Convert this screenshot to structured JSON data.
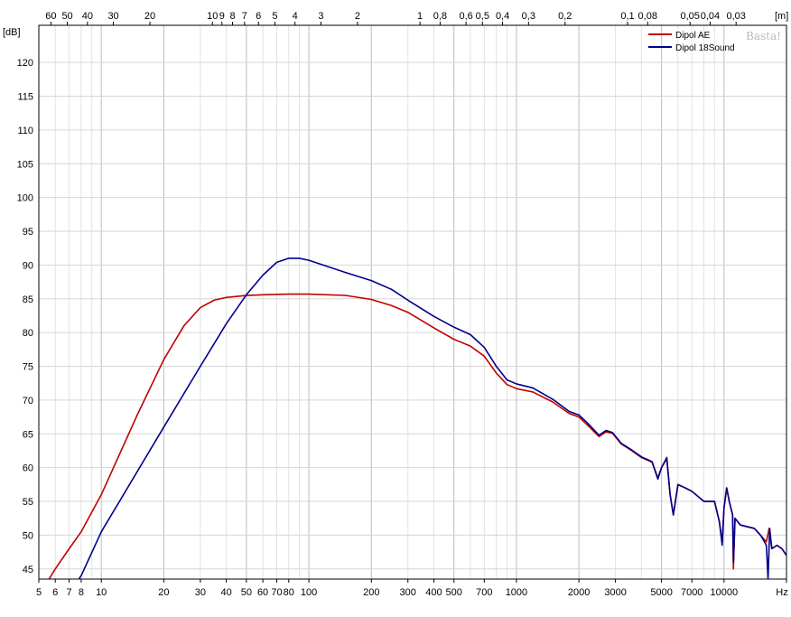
{
  "chart_data": {
    "type": "line",
    "title": "",
    "xlabel_unit": "Hz",
    "ylabel_unit": "[dB]",
    "top_axis_unit": "[m]",
    "x_scale": "log",
    "xlim": [
      5,
      20000
    ],
    "ylim": [
      43.5,
      125.5
    ],
    "grid": true,
    "legend_position": "top-right",
    "watermark": "Basta!",
    "x_ticks": [
      {
        "v": 5,
        "label": "5"
      },
      {
        "v": 6,
        "label": "6"
      },
      {
        "v": 7,
        "label": "7"
      },
      {
        "v": 8,
        "label": "8"
      },
      {
        "v": 10,
        "label": "10"
      },
      {
        "v": 20,
        "label": "20"
      },
      {
        "v": 30,
        "label": "30"
      },
      {
        "v": 40,
        "label": "40"
      },
      {
        "v": 50,
        "label": "50"
      },
      {
        "v": 60,
        "label": "60"
      },
      {
        "v": 70,
        "label": "70"
      },
      {
        "v": 80,
        "label": "80"
      },
      {
        "v": 100,
        "label": "100"
      },
      {
        "v": 200,
        "label": "200"
      },
      {
        "v": 300,
        "label": "300"
      },
      {
        "v": 400,
        "label": "400"
      },
      {
        "v": 500,
        "label": "500"
      },
      {
        "v": 700,
        "label": "700"
      },
      {
        "v": 1000,
        "label": "1000"
      },
      {
        "v": 2000,
        "label": "2000"
      },
      {
        "v": 3000,
        "label": "3000"
      },
      {
        "v": 5000,
        "label": "5000"
      },
      {
        "v": 7000,
        "label": "7000"
      },
      {
        "v": 10000,
        "label": "10000"
      },
      {
        "v": 20000,
        "label": "Hz"
      }
    ],
    "top_ticks": [
      {
        "v": 60,
        "label": "60"
      },
      {
        "v": 50,
        "label": "50"
      },
      {
        "v": 40,
        "label": "40"
      },
      {
        "v": 30,
        "label": "30"
      },
      {
        "v": 20,
        "label": "20"
      },
      {
        "v": 10,
        "label": "10"
      },
      {
        "v": 9,
        "label": "9"
      },
      {
        "v": 8,
        "label": "8"
      },
      {
        "v": 7,
        "label": "7"
      },
      {
        "v": 6,
        "label": "6"
      },
      {
        "v": 5,
        "label": "5"
      },
      {
        "v": 4,
        "label": "4"
      },
      {
        "v": 3,
        "label": "3"
      },
      {
        "v": 2,
        "label": "2"
      },
      {
        "v": 1,
        "label": "1"
      },
      {
        "v": 0.8,
        "label": "0,8"
      },
      {
        "v": 0.6,
        "label": "0,6"
      },
      {
        "v": 0.5,
        "label": "0,5"
      },
      {
        "v": 0.4,
        "label": "0,4"
      },
      {
        "v": 0.3,
        "label": "0,3"
      },
      {
        "v": 0.2,
        "label": "0,2"
      },
      {
        "v": 0.1,
        "label": "0,1"
      },
      {
        "v": 0.08,
        "label": "0,08"
      },
      {
        "v": 0.05,
        "label": "0,05"
      },
      {
        "v": 0.04,
        "label": "0,04"
      },
      {
        "v": 0.03,
        "label": "0,03"
      }
    ],
    "y_ticks": [
      45,
      50,
      55,
      60,
      65,
      70,
      75,
      80,
      85,
      90,
      95,
      100,
      105,
      110,
      115,
      120
    ],
    "series": [
      {
        "name": "Dipol AE",
        "color": "#c00000",
        "points": [
          [
            5.6,
            43.5
          ],
          [
            6,
            45
          ],
          [
            7,
            48
          ],
          [
            8,
            50.5
          ],
          [
            10,
            56
          ],
          [
            15,
            68
          ],
          [
            20,
            76
          ],
          [
            25,
            81
          ],
          [
            30,
            83.7
          ],
          [
            35,
            84.8
          ],
          [
            40,
            85.2
          ],
          [
            50,
            85.5
          ],
          [
            60,
            85.6
          ],
          [
            80,
            85.7
          ],
          [
            100,
            85.7
          ],
          [
            150,
            85.5
          ],
          [
            200,
            84.9
          ],
          [
            250,
            84
          ],
          [
            300,
            83
          ],
          [
            400,
            80.7
          ],
          [
            500,
            79
          ],
          [
            600,
            78
          ],
          [
            700,
            76.5
          ],
          [
            800,
            74
          ],
          [
            900,
            72.3
          ],
          [
            1000,
            71.7
          ],
          [
            1200,
            71.2
          ],
          [
            1500,
            69.7
          ],
          [
            1800,
            68
          ],
          [
            2000,
            67.5
          ],
          [
            2200,
            66.3
          ],
          [
            2500,
            64.6
          ],
          [
            2700,
            65.3
          ],
          [
            2900,
            65.1
          ],
          [
            3200,
            63.5
          ],
          [
            3600,
            62.5
          ],
          [
            4000,
            61.5
          ],
          [
            4500,
            60.8
          ],
          [
            4800,
            58.5
          ],
          [
            5000,
            60
          ],
          [
            5300,
            61.3
          ],
          [
            5500,
            56
          ],
          [
            5700,
            53
          ],
          [
            6000,
            57.5
          ],
          [
            6500,
            57
          ],
          [
            7000,
            56.5
          ],
          [
            8000,
            55
          ],
          [
            9000,
            55
          ],
          [
            9500,
            52
          ],
          [
            9800,
            49
          ],
          [
            10000,
            54
          ],
          [
            10300,
            57
          ],
          [
            10600,
            55
          ],
          [
            11000,
            53
          ],
          [
            11100,
            45
          ],
          [
            11300,
            52.5
          ],
          [
            12000,
            51.5
          ],
          [
            14000,
            51
          ],
          [
            15000,
            50
          ],
          [
            16000,
            49
          ],
          [
            16500,
            51
          ],
          [
            17000,
            48
          ],
          [
            18000,
            48.5
          ],
          [
            19000,
            48
          ],
          [
            20000,
            47
          ]
        ]
      },
      {
        "name": "Dipol 18Sound",
        "color": "#00008b",
        "points": [
          [
            7.8,
            43.5
          ],
          [
            8,
            44
          ],
          [
            10,
            50.5
          ],
          [
            20,
            66
          ],
          [
            30,
            75
          ],
          [
            40,
            81.3
          ],
          [
            50,
            85.6
          ],
          [
            60,
            88.5
          ],
          [
            70,
            90.4
          ],
          [
            80,
            91
          ],
          [
            90,
            91
          ],
          [
            100,
            90.7
          ],
          [
            150,
            88.9
          ],
          [
            200,
            87.7
          ],
          [
            250,
            86.4
          ],
          [
            300,
            84.8
          ],
          [
            400,
            82.4
          ],
          [
            500,
            80.8
          ],
          [
            600,
            79.7
          ],
          [
            700,
            77.8
          ],
          [
            800,
            75
          ],
          [
            900,
            73
          ],
          [
            1000,
            72.4
          ],
          [
            1200,
            71.8
          ],
          [
            1500,
            70.1
          ],
          [
            1800,
            68.3
          ],
          [
            2000,
            67.8
          ],
          [
            2200,
            66.6
          ],
          [
            2500,
            64.8
          ],
          [
            2700,
            65.5
          ],
          [
            2900,
            65.2
          ],
          [
            3200,
            63.6
          ],
          [
            3600,
            62.6
          ],
          [
            4000,
            61.6
          ],
          [
            4500,
            60.9
          ],
          [
            4800,
            58.3
          ],
          [
            5000,
            60
          ],
          [
            5300,
            61.5
          ],
          [
            5500,
            56
          ],
          [
            5700,
            53
          ],
          [
            6000,
            57.5
          ],
          [
            6500,
            57
          ],
          [
            7000,
            56.5
          ],
          [
            8000,
            55
          ],
          [
            9000,
            55
          ],
          [
            9500,
            52
          ],
          [
            9800,
            48.5
          ],
          [
            10000,
            54
          ],
          [
            10300,
            57
          ],
          [
            10600,
            55
          ],
          [
            11000,
            53
          ],
          [
            11100,
            46
          ],
          [
            11300,
            52.5
          ],
          [
            12000,
            51.5
          ],
          [
            14000,
            51
          ],
          [
            15000,
            50
          ],
          [
            16000,
            48.5
          ],
          [
            16300,
            43.5
          ],
          [
            16600,
            51
          ],
          [
            17000,
            48
          ],
          [
            18000,
            48.5
          ],
          [
            19000,
            48
          ],
          [
            20000,
            47
          ]
        ]
      }
    ]
  }
}
